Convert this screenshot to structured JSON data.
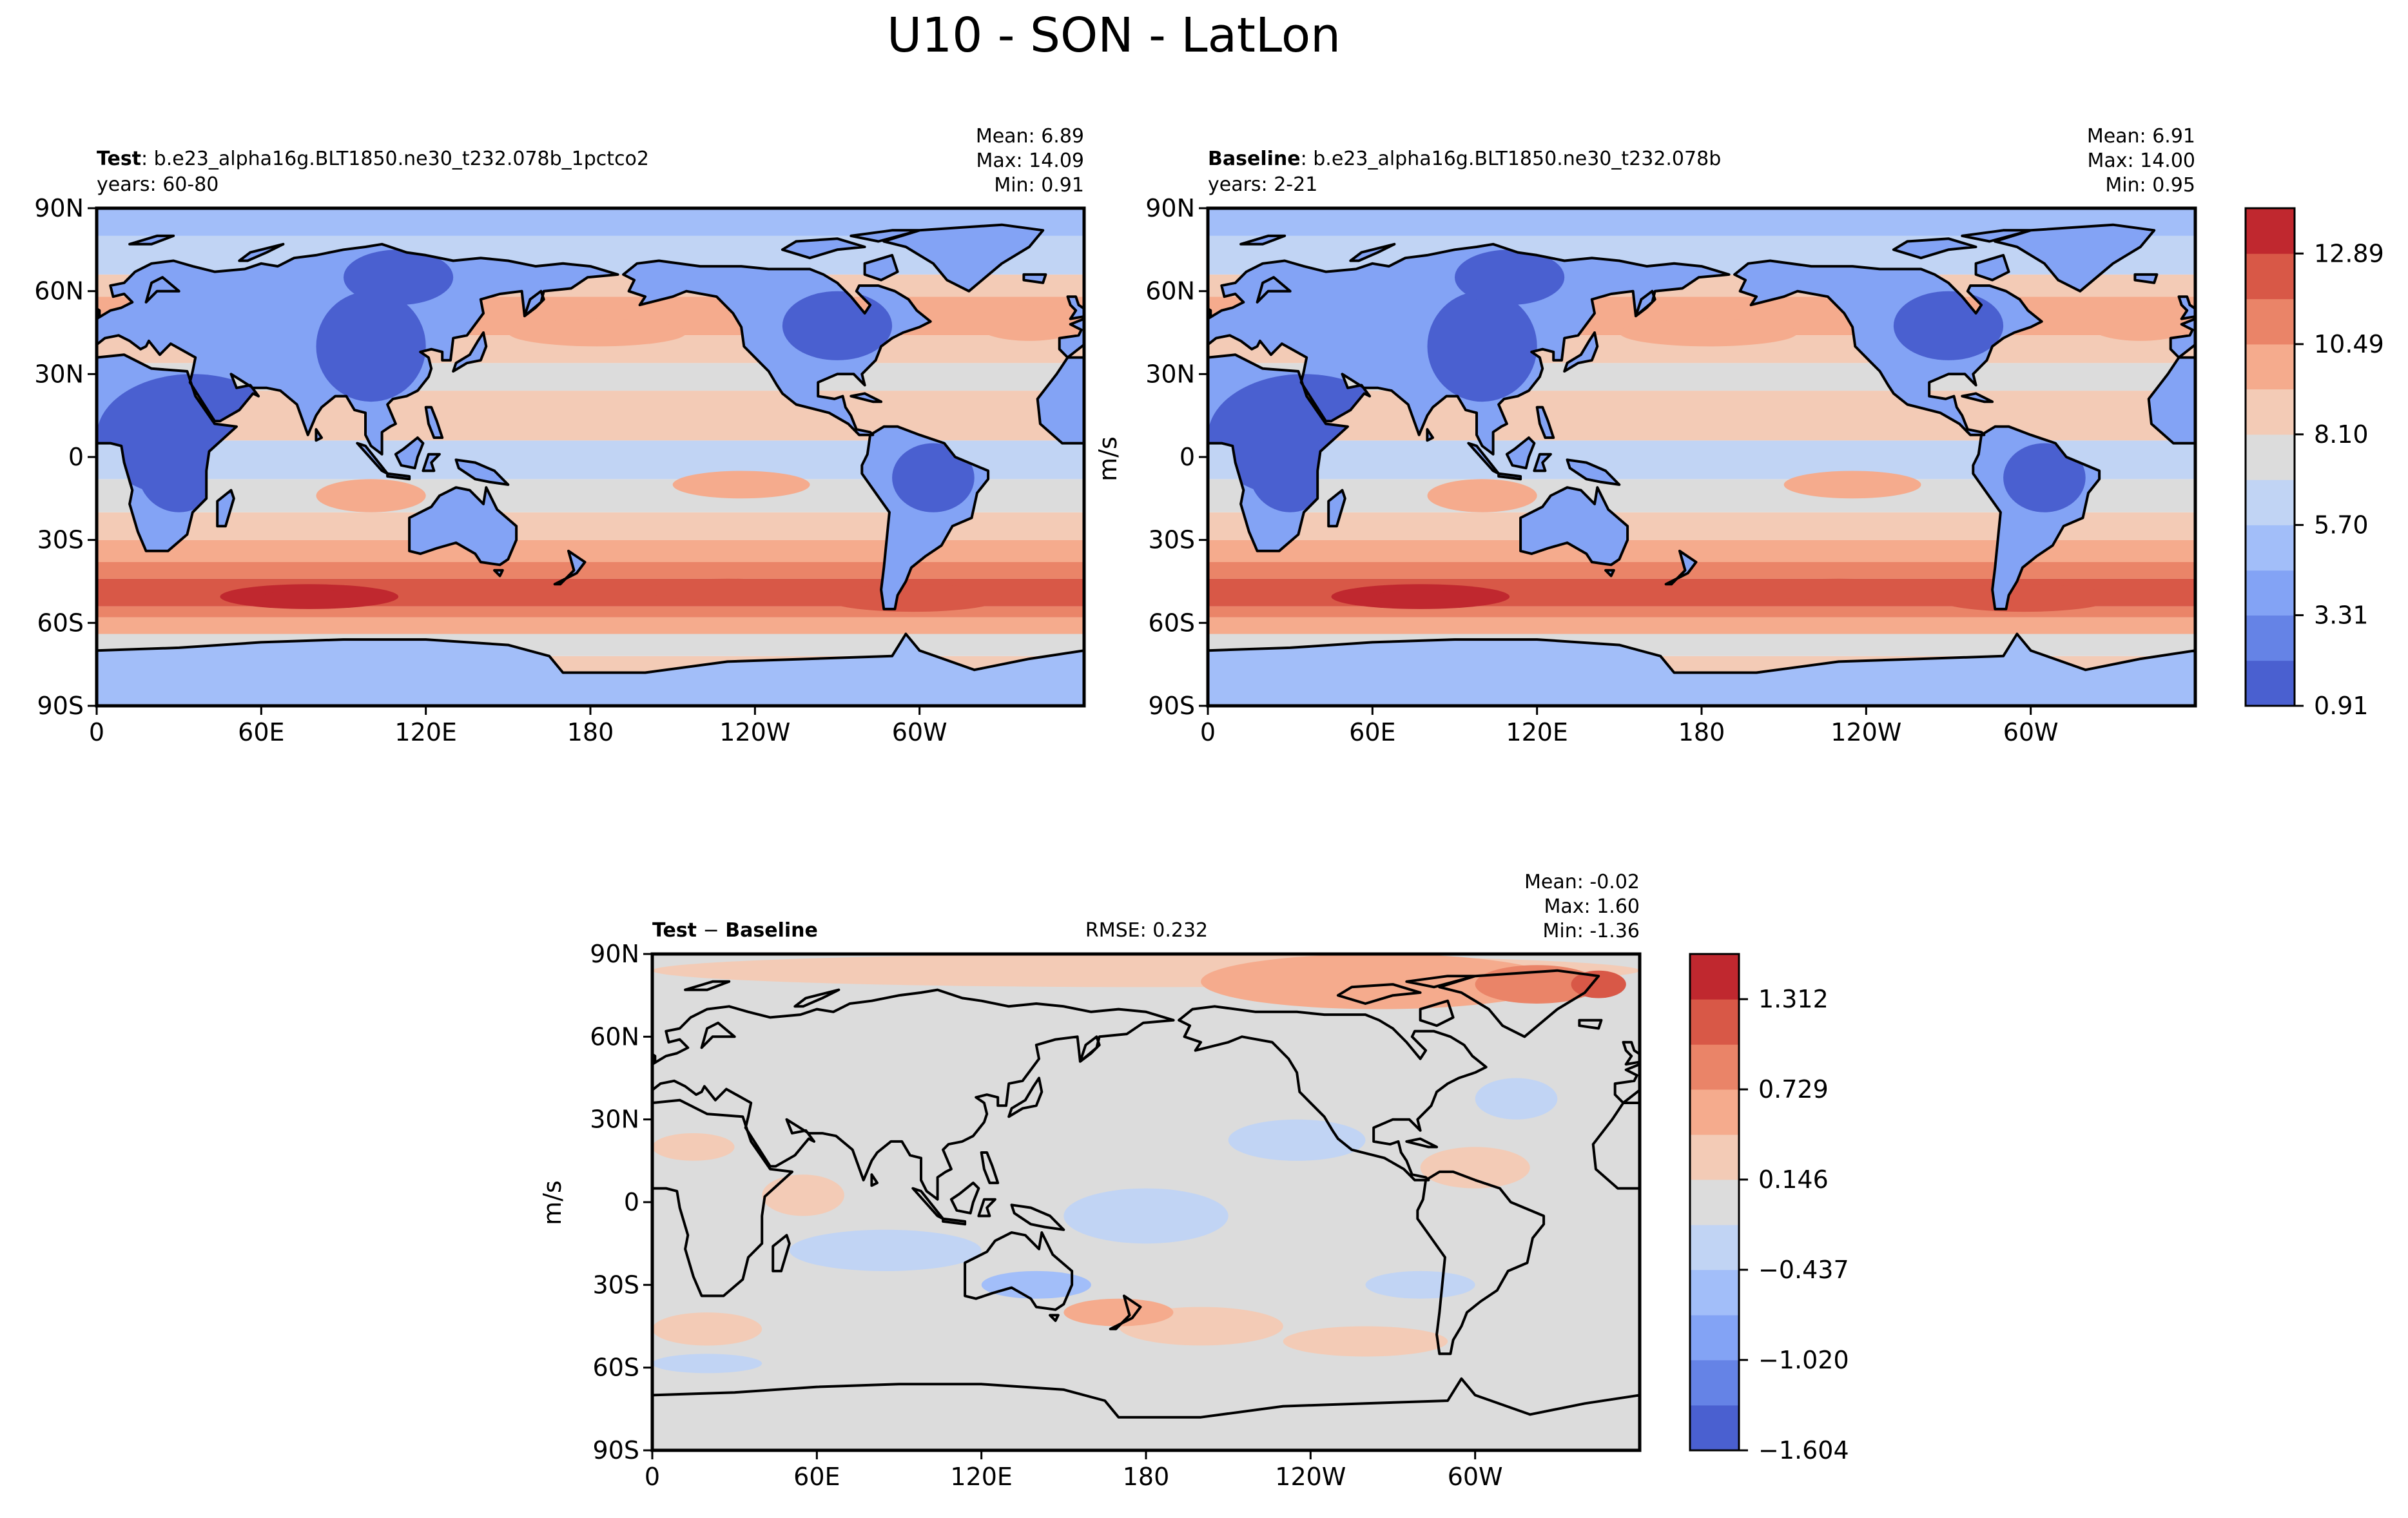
{
  "figure": {
    "title": "U10 - SON - LatLon"
  },
  "colors": {
    "test_baseline_palette": [
      "#4a60d0",
      "#6583e6",
      "#83a3f5",
      "#a2bef9",
      "#c1d4f4",
      "#dcdcdc",
      "#f3cbb6",
      "#f5ab8d",
      "#ea8468",
      "#d85847",
      "#c0282f"
    ],
    "diff_palette": [
      "#4a60d0",
      "#6583e6",
      "#83a3f5",
      "#a2bef9",
      "#c1d4f4",
      "#dcdcdc",
      "#f3cbb6",
      "#f5ab8d",
      "#ea8468",
      "#d85847",
      "#c0282f"
    ],
    "coastline": "#000000",
    "frame": "#000000"
  },
  "chart_data": [
    {
      "type": "heatmap",
      "panel": "Test",
      "title_bold": "Test",
      "title_rest": ": b.e23_alpha16g.BLT1850.ne30_t232.078b_1pctco2",
      "subtitle": "years: 60-80",
      "stats": [
        "Mean:  6.89",
        "Max: 14.09",
        "Min:  0.91"
      ],
      "mean": 6.89,
      "max": 14.09,
      "min": 0.91,
      "x_ticks": [
        "0",
        "60E",
        "120E",
        "180",
        "120W",
        "60W"
      ],
      "y_ticks": [
        "90N",
        "60N",
        "30N",
        "0",
        "30S",
        "60S",
        "90S"
      ],
      "xlim": [
        0,
        360
      ],
      "ylim": [
        -90,
        90
      ],
      "zonal_profile": {
        "lat": [
          -90,
          -75,
          -60,
          -52,
          -45,
          -30,
          -15,
          0,
          15,
          30,
          45,
          60,
          75,
          90
        ],
        "value": [
          6.0,
          6.8,
          11.5,
          13.5,
          11.0,
          8.5,
          7.2,
          6.3,
          7.5,
          8.0,
          9.5,
          8.5,
          6.5,
          6.0
        ]
      }
    },
    {
      "type": "heatmap",
      "panel": "Baseline",
      "title_bold": "Baseline",
      "title_rest": ": b.e23_alpha16g.BLT1850.ne30_t232.078b",
      "subtitle": "years: 2-21",
      "stats": [
        "Mean:  6.91",
        "Max: 14.00",
        "Min:  0.95"
      ],
      "mean": 6.91,
      "max": 14.0,
      "min": 0.95,
      "x_ticks": [
        "0",
        "60E",
        "120E",
        "180",
        "120W",
        "60W"
      ],
      "y_ticks": [
        "90N",
        "60N",
        "30N",
        "0",
        "30S",
        "60S",
        "90S"
      ],
      "xlim": [
        0,
        360
      ],
      "ylim": [
        -90,
        90
      ],
      "colorbar": {
        "label": "m/s",
        "levels": [
          0.91,
          2.11,
          3.31,
          4.5,
          5.7,
          6.9,
          8.1,
          9.3,
          10.49,
          11.69,
          12.89,
          14.09
        ],
        "tick_labels": [
          "0.91",
          "3.31",
          "5.70",
          "8.10",
          "10.49",
          "12.89"
        ],
        "tick_values": [
          0.91,
          3.31,
          5.7,
          8.1,
          10.49,
          12.89
        ]
      }
    },
    {
      "type": "heatmap",
      "panel": "Test - Baseline",
      "title_bold_a": "Test",
      "title_mid": " − ",
      "title_bold_b": "Baseline",
      "rmse": "RMSE: 0.232",
      "stats": [
        "Mean: -0.02",
        "Max:  1.60",
        "Min: -1.36"
      ],
      "mean": -0.02,
      "max": 1.6,
      "min": -1.36,
      "x_ticks": [
        "0",
        "60E",
        "120E",
        "180",
        "120W",
        "60W"
      ],
      "y_ticks": [
        "90N",
        "60N",
        "30N",
        "0",
        "30S",
        "60S",
        "90S"
      ],
      "xlim": [
        0,
        360
      ],
      "ylim": [
        -90,
        90
      ],
      "colorbar": {
        "label": "m/s",
        "levels": [
          -1.604,
          -1.312,
          -1.02,
          -0.729,
          -0.437,
          -0.146,
          0.146,
          0.437,
          0.729,
          1.02,
          1.312,
          1.604
        ],
        "tick_labels": [
          "−1.604",
          "−1.020",
          "−0.437",
          "0.146",
          "0.729",
          "1.312"
        ],
        "tick_values": [
          -1.604,
          -1.02,
          -0.437,
          0.146,
          0.729,
          1.312
        ]
      }
    }
  ]
}
